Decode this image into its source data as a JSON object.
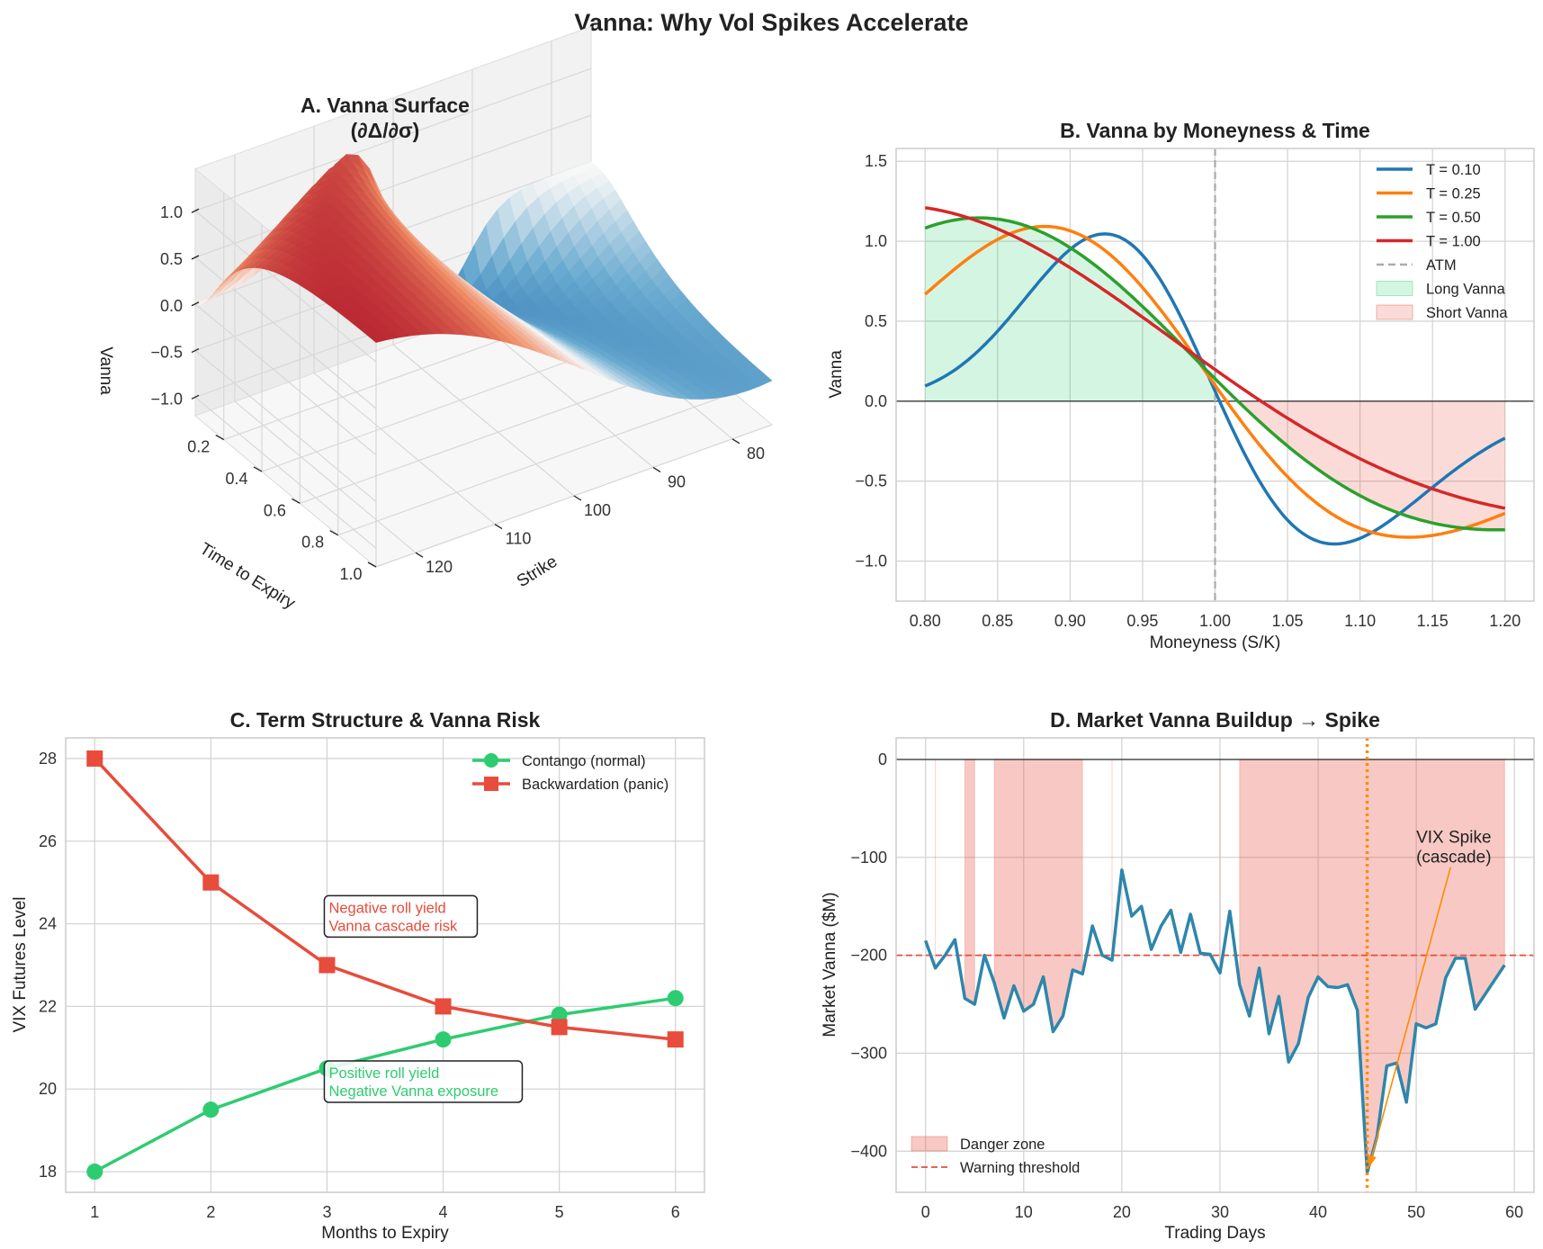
{
  "suptitle": "Vanna: Why Vol Spikes Accelerate",
  "chart_data": [
    {
      "id": "A",
      "type": "surface",
      "title_line1": "A. Vanna Surface",
      "title_line2": "(∂Δ/∂σ)",
      "xlabel": "Strike",
      "ylabel": "Time to Expiry",
      "zlabel": "Vanna",
      "strike_ticks": [
        "80",
        "90",
        "100",
        "110",
        "120"
      ],
      "time_ticks": [
        "0.2",
        "0.4",
        "0.6",
        "0.8",
        "1.0"
      ],
      "vanna_ticks": [
        "1.0",
        "0.5",
        "0.0",
        "−0.5",
        "−1.0"
      ],
      "strike_range": [
        75,
        125
      ],
      "time_range": [
        0.05,
        1.0
      ],
      "vanna_range": [
        -1.2,
        1.45
      ],
      "colormap": "RdBu_r"
    },
    {
      "id": "B",
      "type": "line",
      "title": "B. Vanna by Moneyness & Time",
      "xlabel": "Moneyness (S/K)",
      "ylabel": "Vanna",
      "xlim": [
        0.78,
        1.22
      ],
      "ylim": [
        -1.25,
        1.58
      ],
      "xticks": [
        "0.80",
        "0.85",
        "0.90",
        "0.95",
        "1.00",
        "1.05",
        "1.10",
        "1.15",
        "1.20"
      ],
      "yticks": [
        "1.5",
        "1.0",
        "0.5",
        "0.0",
        "−0.5",
        "−1.0"
      ],
      "series": [
        {
          "name": "T = 0.10",
          "T": 0.1,
          "color": "#1f77b4"
        },
        {
          "name": "T = 0.25",
          "T": 0.25,
          "color": "#ff7f0e"
        },
        {
          "name": "T = 0.50",
          "T": 0.5,
          "color": "#2ca02c"
        },
        {
          "name": "T = 1.00",
          "T": 1.0,
          "color": "#d62728"
        }
      ],
      "atm": {
        "x": 1.0,
        "label": "ATM",
        "color": "#aaaaaa"
      },
      "fill_long": {
        "label": "Long Vanna",
        "color": "#2ecc71"
      },
      "fill_short": {
        "label": "Short Vanna",
        "color": "#e74c3c"
      }
    },
    {
      "id": "C",
      "type": "line",
      "title": "C. Term Structure & Vanna Risk",
      "xlabel": "Months to Expiry",
      "ylabel": "VIX Futures Level",
      "xlim": [
        0.75,
        6.25
      ],
      "ylim": [
        17.5,
        28.5
      ],
      "x": [
        1,
        2,
        3,
        4,
        5,
        6
      ],
      "xticks": [
        "1",
        "2",
        "3",
        "4",
        "5",
        "6"
      ],
      "yticks": [
        "28",
        "26",
        "24",
        "22",
        "20",
        "18"
      ],
      "series": [
        {
          "name": "Contango (normal)",
          "values": [
            18,
            19.5,
            20.5,
            21.2,
            21.8,
            22.2
          ],
          "color": "#2ecc71",
          "marker": "circle"
        },
        {
          "name": "Backwardation (panic)",
          "values": [
            28,
            25,
            23,
            22,
            21.5,
            21.2
          ],
          "color": "#e74c3c",
          "marker": "square"
        }
      ],
      "annotations": [
        {
          "line1": "Negative roll yield",
          "line2": "Vanna cascade risk",
          "x": 3,
          "y": 24.2,
          "color": "#e74c3c"
        },
        {
          "line1": "Positive roll yield",
          "line2": "Negative Vanna exposure",
          "x": 3,
          "y": 20.2,
          "color": "#2ecc71"
        }
      ]
    },
    {
      "id": "D",
      "type": "line",
      "title": "D. Market Vanna Buildup → Spike",
      "xlabel": "Trading Days",
      "ylabel": "Market Vanna ($M)",
      "xlim": [
        -3,
        62
      ],
      "ylim": [
        -442,
        22
      ],
      "xticks": [
        "0",
        "10",
        "20",
        "30",
        "40",
        "50",
        "60"
      ],
      "yticks": [
        "0",
        "−100",
        "−200",
        "−300",
        "−400"
      ],
      "x_start": 0,
      "values": [
        -185,
        -213,
        -200,
        -184,
        -244,
        -250,
        -200,
        -228,
        -264,
        -231,
        -257,
        -250,
        -222,
        -278,
        -262,
        -215,
        -219,
        -170,
        -200,
        -205,
        -113,
        -160,
        -150,
        -194,
        -170,
        -154,
        -197,
        -158,
        -198,
        -199,
        -218,
        -155,
        -230,
        -262,
        -213,
        -280,
        -242,
        -309,
        -290,
        -243,
        -222,
        -232,
        -233,
        -230,
        -256,
        -422,
        -385,
        -313,
        -310,
        -350,
        -270,
        -274,
        -270,
        -223,
        -203,
        -203,
        -255,
        -240,
        -225,
        -210
      ],
      "line_color": "#2e86ab",
      "threshold": -200,
      "threshold_label": "Warning threshold",
      "danger_label": "Danger zone",
      "spike_day": 45,
      "annotation_line1": "VIX Spike",
      "annotation_line2": "(cascade)",
      "annotation_text_at": [
        50,
        -85
      ]
    }
  ]
}
